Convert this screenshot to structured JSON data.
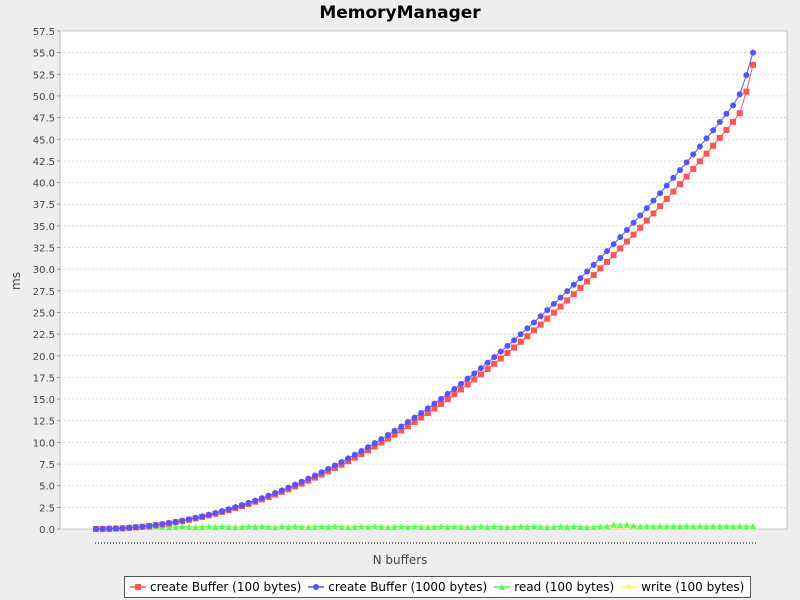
{
  "chart_data": {
    "type": "line",
    "title": "MemoryManager",
    "xlabel": "N buffers",
    "ylabel": "ms",
    "ylim": [
      0,
      57.5
    ],
    "yticks": [
      "0.0",
      "2.5",
      "5.0",
      "7.5",
      "10.0",
      "12.5",
      "15.0",
      "17.5",
      "20.0",
      "22.5",
      "25.0",
      "27.5",
      "30.0",
      "32.5",
      "35.0",
      "37.5",
      "40.0",
      "42.5",
      "45.0",
      "47.5",
      "50.0",
      "52.5",
      "55.0",
      "57.5"
    ],
    "grid": true,
    "legend_position": "bottom",
    "point_count": 100,
    "series": [
      {
        "name": "create Buffer (100 bytes)",
        "color": "#ff5555",
        "marker": "square",
        "values": [
          0.0,
          0.01,
          0.02,
          0.05,
          0.08,
          0.13,
          0.19,
          0.26,
          0.34,
          0.43,
          0.53,
          0.65,
          0.78,
          0.91,
          1.06,
          1.22,
          1.39,
          1.57,
          1.76,
          1.97,
          2.18,
          2.41,
          2.64,
          2.89,
          3.15,
          3.41,
          3.69,
          3.98,
          4.28,
          4.59,
          4.91,
          5.24,
          5.58,
          5.93,
          6.29,
          6.66,
          7.04,
          7.43,
          7.83,
          8.24,
          8.66,
          9.09,
          9.53,
          9.97,
          10.43,
          10.9,
          11.38,
          11.87,
          12.36,
          12.87,
          13.39,
          13.91,
          14.45,
          14.99,
          15.55,
          16.11,
          16.69,
          17.27,
          17.86,
          18.46,
          19.07,
          19.69,
          20.32,
          20.96,
          21.61,
          22.26,
          22.93,
          23.6,
          24.29,
          24.98,
          25.68,
          26.39,
          27.11,
          27.84,
          28.58,
          29.32,
          30.08,
          30.84,
          31.62,
          32.4,
          33.19,
          33.99,
          34.79,
          35.61,
          36.44,
          37.27,
          38.11,
          38.96,
          39.82,
          40.69,
          41.57,
          42.45,
          43.34,
          44.25,
          45.16,
          46.08,
          47.01,
          48.0,
          50.5,
          53.6
        ]
      },
      {
        "name": "create Buffer (1000 bytes)",
        "color": "#5555ff",
        "marker": "circle",
        "values": [
          0.0,
          0.01,
          0.03,
          0.06,
          0.09,
          0.15,
          0.21,
          0.28,
          0.36,
          0.46,
          0.57,
          0.69,
          0.82,
          0.96,
          1.12,
          1.28,
          1.46,
          1.65,
          1.85,
          2.06,
          2.28,
          2.52,
          2.76,
          3.02,
          3.28,
          3.56,
          3.85,
          4.15,
          4.46,
          4.78,
          5.12,
          5.46,
          5.81,
          6.17,
          6.55,
          6.93,
          7.33,
          7.73,
          8.15,
          8.57,
          9.01,
          9.46,
          9.91,
          10.38,
          10.86,
          11.34,
          11.84,
          12.35,
          12.86,
          13.39,
          13.93,
          14.47,
          15.03,
          15.6,
          16.17,
          16.76,
          17.36,
          17.96,
          18.58,
          19.2,
          19.84,
          20.48,
          21.14,
          21.8,
          22.48,
          23.16,
          23.85,
          24.56,
          25.27,
          25.99,
          26.72,
          27.46,
          28.2,
          28.96,
          29.73,
          30.5,
          31.29,
          32.08,
          32.89,
          33.7,
          34.52,
          35.36,
          36.2,
          37.05,
          37.91,
          38.77,
          39.65,
          40.54,
          41.43,
          42.33,
          43.25,
          44.17,
          45.1,
          46.04,
          46.99,
          47.94,
          48.91,
          50.2,
          52.4,
          55.0
        ]
      },
      {
        "name": "read (100 bytes)",
        "color": "#55ff55",
        "marker": "triangle",
        "values": [
          0.1,
          0.15,
          0.2,
          0.15,
          0.2,
          0.25,
          0.2,
          0.25,
          0.2,
          0.3,
          0.25,
          0.2,
          0.25,
          0.3,
          0.25,
          0.2,
          0.25,
          0.3,
          0.25,
          0.3,
          0.25,
          0.2,
          0.25,
          0.3,
          0.25,
          0.3,
          0.25,
          0.2,
          0.3,
          0.25,
          0.3,
          0.25,
          0.2,
          0.25,
          0.3,
          0.25,
          0.3,
          0.25,
          0.2,
          0.25,
          0.3,
          0.25,
          0.3,
          0.25,
          0.2,
          0.25,
          0.3,
          0.25,
          0.3,
          0.25,
          0.2,
          0.25,
          0.3,
          0.25,
          0.3,
          0.25,
          0.2,
          0.25,
          0.3,
          0.25,
          0.3,
          0.25,
          0.2,
          0.25,
          0.3,
          0.25,
          0.3,
          0.25,
          0.2,
          0.25,
          0.3,
          0.25,
          0.3,
          0.25,
          0.2,
          0.25,
          0.3,
          0.3,
          0.5,
          0.45,
          0.5,
          0.4,
          0.3,
          0.35,
          0.3,
          0.35,
          0.3,
          0.35,
          0.3,
          0.35,
          0.3,
          0.35,
          0.3,
          0.35,
          0.3,
          0.35,
          0.3,
          0.35,
          0.3,
          0.35
        ]
      },
      {
        "name": "write (100 bytes)",
        "color": "#ffff55",
        "marker": "diamond",
        "values": [
          0.05,
          0.1,
          0.15,
          0.2,
          0.15,
          0.2,
          0.25,
          0.2,
          0.25,
          0.2,
          0.25,
          0.2,
          0.25,
          0.2,
          0.25,
          0.2,
          0.25,
          0.2,
          0.25,
          0.2,
          0.25,
          0.2,
          0.25,
          0.2,
          0.25,
          0.2,
          0.25,
          0.2,
          0.25,
          0.2,
          0.25,
          0.2,
          0.25,
          0.2,
          0.25,
          0.2,
          0.25,
          0.2,
          0.25,
          0.2,
          0.25,
          0.2,
          0.25,
          0.2,
          0.25,
          0.2,
          0.25,
          0.2,
          0.25,
          0.2,
          0.25,
          0.2,
          0.25,
          0.2,
          0.25,
          0.2,
          0.25,
          0.2,
          0.25,
          0.2,
          0.25,
          0.2,
          0.25,
          0.2,
          0.25,
          0.2,
          0.25,
          0.2,
          0.25,
          0.2,
          0.25,
          0.2,
          0.25,
          0.2,
          0.25,
          0.2,
          0.25,
          0.2,
          0.25,
          0.2,
          0.25,
          0.2,
          0.25,
          0.2,
          0.25,
          0.2,
          0.25,
          0.2,
          0.25,
          0.2,
          0.25,
          0.2,
          0.25,
          0.2,
          0.25,
          0.2,
          0.25,
          0.2,
          0.25,
          0.2
        ]
      }
    ]
  }
}
